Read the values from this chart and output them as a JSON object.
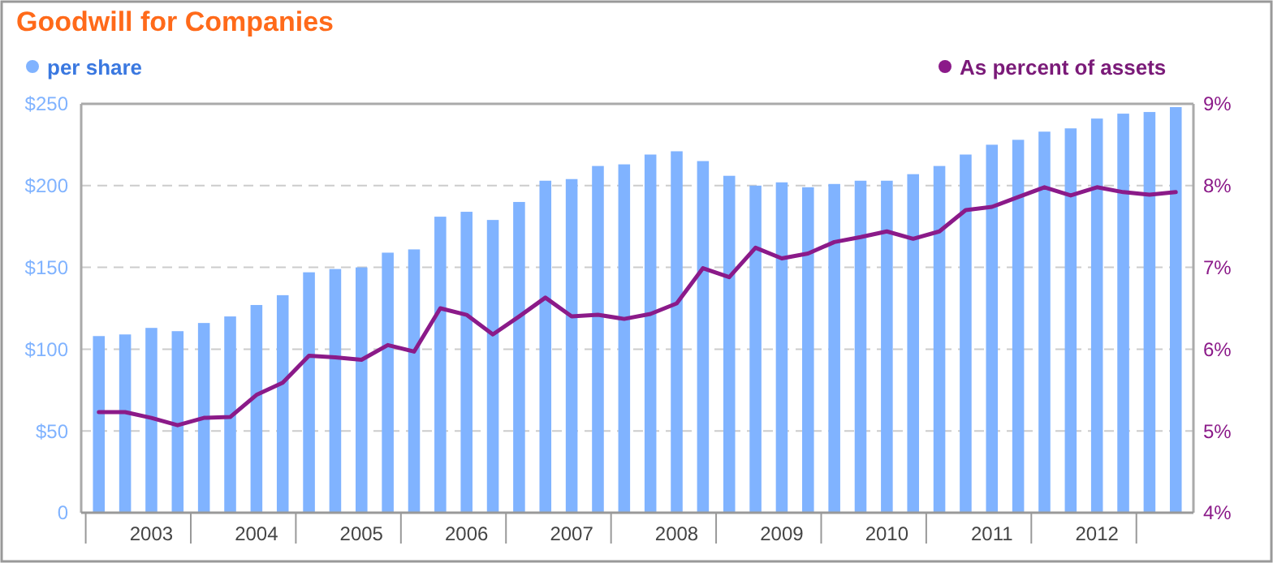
{
  "chart_data": {
    "type": "bar",
    "title": "Goodwill for Companies",
    "categories": [
      null,
      null,
      "2003",
      null,
      null,
      null,
      "2004",
      null,
      null,
      null,
      "2005",
      null,
      null,
      null,
      "2006",
      null,
      null,
      null,
      "2007",
      null,
      null,
      null,
      "2008",
      null,
      null,
      null,
      "2009",
      null,
      null,
      null,
      "2010",
      null,
      null,
      null,
      "2011",
      null,
      null,
      null,
      "2012",
      null,
      null,
      null
    ],
    "series": [
      {
        "name": "per share",
        "color": "#80b3ff",
        "values": [
          108,
          109,
          113,
          111,
          116,
          120,
          127,
          133,
          147,
          149,
          150,
          159,
          161,
          181,
          184,
          179,
          190,
          203,
          204,
          212,
          213,
          219,
          221,
          215,
          206,
          200,
          202,
          199,
          201,
          203,
          203,
          207,
          212,
          219,
          225,
          228,
          233,
          235,
          241,
          244,
          245,
          248
        ]
      },
      {
        "name": "As percent of assets",
        "type": "line",
        "axis": "y2",
        "color": "#8b1a89",
        "values": [
          5.23,
          5.23,
          5.16,
          5.07,
          5.16,
          5.17,
          5.44,
          5.59,
          5.92,
          5.9,
          5.87,
          6.05,
          5.97,
          6.5,
          6.42,
          6.18,
          6.4,
          6.63,
          6.4,
          6.42,
          6.37,
          6.43,
          6.56,
          6.99,
          6.88,
          7.24,
          7.11,
          7.17,
          7.31,
          7.37,
          7.44,
          7.35,
          7.44,
          7.7,
          7.74,
          7.86,
          7.98,
          7.88,
          7.98,
          7.92,
          7.89,
          7.92
        ]
      }
    ],
    "ylim": [
      0,
      250
    ],
    "yticks": [
      0,
      {
        "value": 50,
        "label": "$50"
      },
      {
        "value": 100,
        "label": "$100"
      },
      {
        "value": 150,
        "label": "$150"
      },
      {
        "value": 200,
        "label": "$200"
      },
      {
        "value": 250,
        "label": "$250"
      }
    ],
    "y2lim": [
      4,
      9
    ],
    "y2ticks": [
      {
        "value": 4,
        "label": "4%"
      },
      {
        "value": 5,
        "label": "5%"
      },
      {
        "value": 6,
        "label": "6%"
      },
      {
        "value": 7,
        "label": "7%"
      },
      {
        "value": 8,
        "label": "8%"
      },
      {
        "value": 9,
        "label": "9%"
      }
    ],
    "grid": "y",
    "legend": "top",
    "marker": "none",
    "line_style": "solid"
  }
}
